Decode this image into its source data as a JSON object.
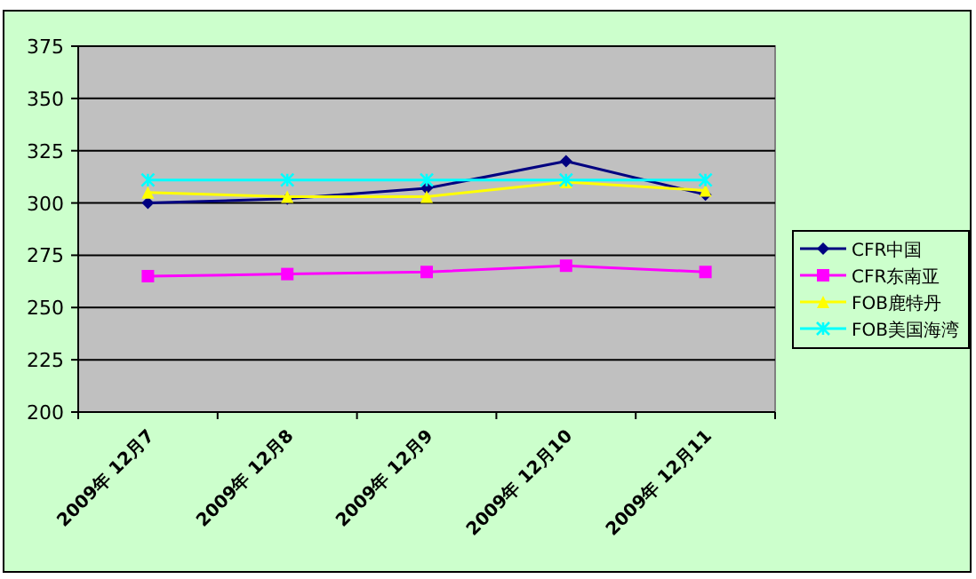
{
  "chart_data": {
    "type": "line",
    "categories": [
      "2009年 12月7",
      "2009年 12月8",
      "2009年 12月9",
      "2009年 12月10",
      "2009年 12月11"
    ],
    "series": [
      {
        "name": "CFR中国",
        "color": "#000080",
        "marker": "diamond",
        "values": [
          300,
          302,
          307,
          320,
          304
        ]
      },
      {
        "name": "CFR东南亚",
        "color": "#ff00ff",
        "marker": "square",
        "values": [
          265,
          266,
          267,
          270,
          267
        ]
      },
      {
        "name": "FOB鹿特丹",
        "color": "#ffff00",
        "marker": "triangle",
        "values": [
          305,
          303,
          303,
          310,
          306
        ]
      },
      {
        "name": "FOB美国海湾",
        "color": "#00ffff",
        "marker": "cross",
        "values": [
          311,
          311,
          311,
          311,
          311
        ]
      }
    ],
    "ylim": [
      200,
      375
    ],
    "yticks": [
      200,
      225,
      250,
      275,
      300,
      325,
      350,
      375
    ],
    "grid": "y",
    "legend": "right"
  }
}
